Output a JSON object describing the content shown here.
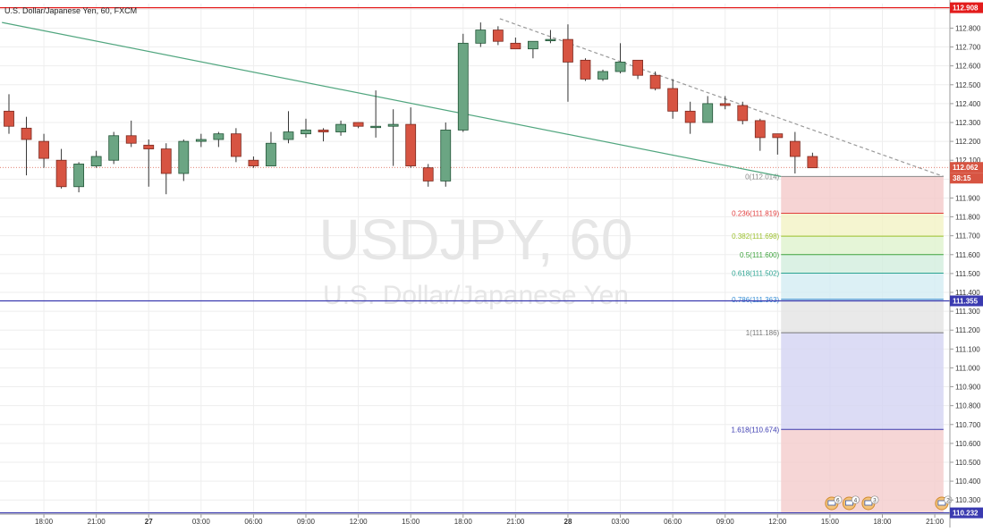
{
  "chart_data": {
    "type": "candlestick",
    "title": "U.S. Dollar/Japanese Yen, 60, FXCM",
    "watermark_symbol": "USDJPY, 60",
    "watermark_name": "U.S. Dollar/Japanese Yen",
    "ylim": [
      110.23,
      112.93
    ],
    "y_ticks": [
      112.9,
      112.8,
      112.7,
      112.6,
      112.5,
      112.4,
      112.3,
      112.2,
      112.1,
      112.0,
      111.9,
      111.8,
      111.7,
      111.6,
      111.5,
      111.4,
      111.3,
      111.2,
      111.1,
      111.0,
      110.9,
      110.8,
      110.7,
      110.6,
      110.5,
      110.4,
      110.3
    ],
    "x_ticks": [
      "18:00",
      "21:00",
      "27",
      "03:00",
      "06:00",
      "09:00",
      "12:00",
      "15:00",
      "18:00",
      "21:00",
      "28",
      "03:00",
      "06:00",
      "09:00",
      "12:00",
      "15:00",
      "18:00",
      "21:00"
    ],
    "grid": true,
    "colors": {
      "up": "#6ba583",
      "down": "#d75442",
      "outline": "#225437",
      "trend": "#51a67f",
      "red_line": "#e31c1c",
      "blue_line": "#3a3ab0"
    },
    "candles": [
      {
        "o": 112.36,
        "h": 112.45,
        "l": 112.24,
        "c": 112.28
      },
      {
        "o": 112.27,
        "h": 112.33,
        "l": 112.02,
        "c": 112.21
      },
      {
        "o": 112.2,
        "h": 112.24,
        "l": 112.06,
        "c": 112.11
      },
      {
        "o": 112.1,
        "h": 112.16,
        "l": 111.95,
        "c": 111.96
      },
      {
        "o": 111.96,
        "h": 112.09,
        "l": 111.93,
        "c": 112.08
      },
      {
        "o": 112.07,
        "h": 112.15,
        "l": 112.06,
        "c": 112.12
      },
      {
        "o": 112.1,
        "h": 112.25,
        "l": 112.08,
        "c": 112.23
      },
      {
        "o": 112.23,
        "h": 112.31,
        "l": 112.17,
        "c": 112.19
      },
      {
        "o": 112.18,
        "h": 112.21,
        "l": 111.96,
        "c": 112.16
      },
      {
        "o": 112.16,
        "h": 112.19,
        "l": 111.92,
        "c": 112.03
      },
      {
        "o": 112.03,
        "h": 112.21,
        "l": 111.99,
        "c": 112.2
      },
      {
        "o": 112.2,
        "h": 112.24,
        "l": 112.17,
        "c": 112.21
      },
      {
        "o": 112.21,
        "h": 112.25,
        "l": 112.17,
        "c": 112.24
      },
      {
        "o": 112.24,
        "h": 112.27,
        "l": 112.09,
        "c": 112.12
      },
      {
        "o": 112.1,
        "h": 112.12,
        "l": 112.06,
        "c": 112.07
      },
      {
        "o": 112.07,
        "h": 112.25,
        "l": 112.07,
        "c": 112.19
      },
      {
        "o": 112.21,
        "h": 112.36,
        "l": 112.19,
        "c": 112.25
      },
      {
        "o": 112.24,
        "h": 112.32,
        "l": 112.22,
        "c": 112.26
      },
      {
        "o": 112.26,
        "h": 112.27,
        "l": 112.2,
        "c": 112.25
      },
      {
        "o": 112.25,
        "h": 112.31,
        "l": 112.23,
        "c": 112.29
      },
      {
        "o": 112.3,
        "h": 112.29,
        "l": 112.27,
        "c": 112.28
      },
      {
        "o": 112.28,
        "h": 112.47,
        "l": 112.22,
        "c": 112.28
      },
      {
        "o": 112.28,
        "h": 112.37,
        "l": 112.07,
        "c": 112.29
      },
      {
        "o": 112.29,
        "h": 112.38,
        "l": 112.06,
        "c": 112.07
      },
      {
        "o": 112.06,
        "h": 112.08,
        "l": 111.96,
        "c": 111.99
      },
      {
        "o": 111.99,
        "h": 112.3,
        "l": 111.96,
        "c": 112.26
      },
      {
        "o": 112.26,
        "h": 112.77,
        "l": 112.25,
        "c": 112.72
      },
      {
        "o": 112.72,
        "h": 112.83,
        "l": 112.7,
        "c": 112.79
      },
      {
        "o": 112.79,
        "h": 112.81,
        "l": 112.71,
        "c": 112.73
      },
      {
        "o": 112.72,
        "h": 112.75,
        "l": 112.69,
        "c": 112.69
      },
      {
        "o": 112.69,
        "h": 112.72,
        "l": 112.64,
        "c": 112.73
      },
      {
        "o": 112.74,
        "h": 112.79,
        "l": 112.72,
        "c": 112.74
      },
      {
        "o": 112.74,
        "h": 112.82,
        "l": 112.41,
        "c": 112.62
      },
      {
        "o": 112.63,
        "h": 112.64,
        "l": 112.52,
        "c": 112.53
      },
      {
        "o": 112.53,
        "h": 112.58,
        "l": 112.52,
        "c": 112.57
      },
      {
        "o": 112.57,
        "h": 112.72,
        "l": 112.56,
        "c": 112.62
      },
      {
        "o": 112.63,
        "h": 112.63,
        "l": 112.53,
        "c": 112.55
      },
      {
        "o": 112.55,
        "h": 112.57,
        "l": 112.47,
        "c": 112.48
      },
      {
        "o": 112.48,
        "h": 112.53,
        "l": 112.32,
        "c": 112.36
      },
      {
        "o": 112.36,
        "h": 112.41,
        "l": 112.24,
        "c": 112.3
      },
      {
        "o": 112.3,
        "h": 112.44,
        "l": 112.3,
        "c": 112.4
      },
      {
        "o": 112.4,
        "h": 112.44,
        "l": 112.37,
        "c": 112.39
      },
      {
        "o": 112.39,
        "h": 112.41,
        "l": 112.29,
        "c": 112.31
      },
      {
        "o": 112.31,
        "h": 112.32,
        "l": 112.15,
        "c": 112.22
      },
      {
        "o": 112.24,
        "h": 112.24,
        "l": 112.13,
        "c": 112.22
      },
      {
        "o": 112.2,
        "h": 112.25,
        "l": 112.03,
        "c": 112.12
      },
      {
        "o": 112.12,
        "h": 112.14,
        "l": 112.06,
        "c": 112.06
      }
    ],
    "horizontal_lines": [
      {
        "name": "red-level",
        "price": 112.908,
        "label": "112.908",
        "color": "#e31c1c"
      },
      {
        "name": "blue-level",
        "price": 111.355,
        "label": "111.355",
        "color": "#3a3ab0"
      },
      {
        "name": "bottom-level",
        "price": 110.232,
        "label": "110.232",
        "color": "#3a3ab0"
      }
    ],
    "current_price": {
      "price": 112.062,
      "label": "112.062",
      "countdown": "38:15",
      "color": "#d75442"
    },
    "trendlines": [
      {
        "name": "green-trendline",
        "style": "solid",
        "from": {
          "bar": -0.4,
          "price": 112.83
        },
        "to": {
          "bar": 44.2,
          "price": 112.014
        }
      },
      {
        "name": "dashed-trendline",
        "style": "dashed",
        "from": {
          "bar": 28.1,
          "price": 112.85
        },
        "to": {
          "bar": 53.5,
          "price": 112.014
        }
      }
    ],
    "fibonacci": {
      "bar_from": 44.2,
      "bar_to": 53.5,
      "levels": [
        {
          "ratio": "0",
          "price": 112.014,
          "label": "0(112.014)",
          "color": "#888888",
          "fill": "#f4c9c9"
        },
        {
          "ratio": "0.236",
          "price": 111.819,
          "label": "0.236(111.819)",
          "color": "#e03c3c",
          "fill": "#f2f2c4"
        },
        {
          "ratio": "0.382",
          "price": 111.698,
          "label": "0.382(111.698)",
          "color": "#9abf2a",
          "fill": "#dff2cd"
        },
        {
          "ratio": "0.5",
          "price": 111.6,
          "label": "0.5(111.600)",
          "color": "#3fa33f",
          "fill": "#d2eedd"
        },
        {
          "ratio": "0.618",
          "price": 111.502,
          "label": "0.618(111.502)",
          "color": "#2aa391",
          "fill": "#d3ecf3"
        },
        {
          "ratio": "0.786",
          "price": 111.363,
          "label": "0.786(111.363)",
          "color": "#3a8fd6",
          "fill": "#e4e4e4"
        },
        {
          "ratio": "1",
          "price": 111.186,
          "label": "1(111.186)",
          "color": "#777777",
          "fill": "#d3d3f2"
        },
        {
          "ratio": "1.618",
          "price": 110.674,
          "label": "1.618(110.674)",
          "color": "#3a3ab0",
          "fill": "#f4cccc"
        }
      ],
      "bottom_price": 110.232
    },
    "event_markers": [
      {
        "bar": 47.1,
        "count": "6"
      },
      {
        "bar": 48.1,
        "count": "4"
      },
      {
        "bar": 49.2,
        "count": "3"
      },
      {
        "bar": 53.4,
        "count": "2"
      }
    ]
  }
}
